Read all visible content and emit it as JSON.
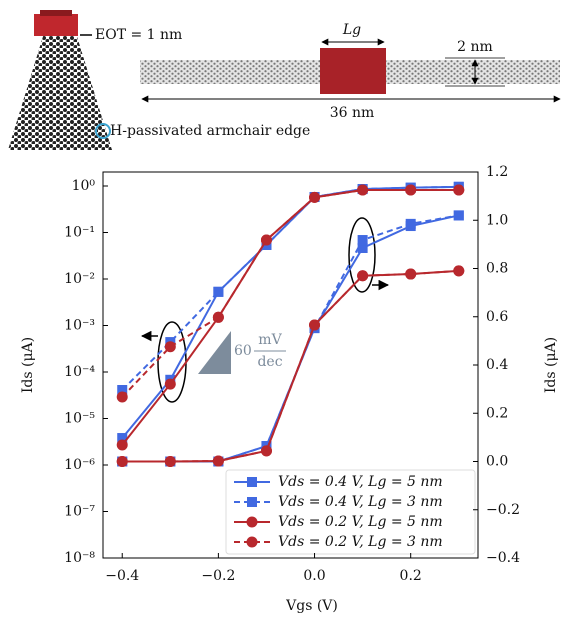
{
  "schematic": {
    "eot": "EOT = 1 nm",
    "gate_length": "Lg",
    "width": "2 nm",
    "length": "36 nm",
    "edge": "H-passivated armchair edge"
  },
  "chart_data": {
    "type": "line",
    "x_label": "Vgs (V)",
    "y_label": "Ids (μA)",
    "y2_label": "Ids (μA)",
    "x": [
      -0.4,
      -0.3,
      -0.2,
      -0.1,
      0,
      0.1,
      0.2,
      0.3
    ],
    "xlim": [
      -0.44,
      0.34
    ],
    "xticks": [
      {
        "value": -0.4,
        "label": "−0.4"
      },
      {
        "value": -0.2,
        "label": "−0.2"
      },
      {
        "value": 0,
        "label": "0.0"
      },
      0.2
    ],
    "log_y": true,
    "ylim": [
      1e-08,
      2
    ],
    "yticks": [
      {
        "value": 1e-08,
        "label": "10⁻⁸"
      },
      {
        "value": 1e-07,
        "label": "10⁻⁷"
      },
      {
        "value": 1e-06,
        "label": "10⁻⁶"
      },
      {
        "value": 1e-05,
        "label": "10⁻⁵"
      },
      {
        "value": 0.0001,
        "label": "10⁻⁴"
      },
      {
        "value": 0.001,
        "label": "10⁻³"
      },
      {
        "value": 0.01,
        "label": "10⁻²"
      },
      {
        "value": 0.1,
        "label": "10⁻¹"
      },
      {
        "value": 1,
        "label": "10⁰"
      }
    ],
    "y2lim": [
      -0.4,
      1.2
    ],
    "y2ticks": [
      {
        "value": -0.4,
        "label": "−0.4"
      },
      {
        "value": -0.2,
        "label": "−0.2"
      },
      {
        "value": 0,
        "label": "0.0"
      },
      0.2,
      0.4,
      0.6,
      0.8,
      {
        "value": 1,
        "label": "1.0"
      },
      1.2
    ],
    "legend": "lower right",
    "annotation": {
      "value": "60",
      "unit_top": "mV",
      "unit_bottom": "dec"
    },
    "series": [
      {
        "name": "Vds = 0.4 V, Lg = 5 nm",
        "color": "#4169e1",
        "dash": false,
        "marker": "square",
        "values": [
          3.8e-06,
          6.8e-05,
          0.0053,
          0.054,
          0.58,
          0.86,
          0.92,
          0.96
        ]
      },
      {
        "name": "Vds = 0.4 V, Lg = 3 nm",
        "color": "#4169e1",
        "dash": true,
        "marker": "square",
        "values": [
          4.1e-05,
          0.00044,
          0.0053,
          0.054,
          0.58,
          0.86,
          0.92,
          0.96
        ]
      },
      {
        "name": "Vds = 0.2 V, Lg = 5 nm",
        "color": "#b8282d",
        "dash": false,
        "marker": "circle",
        "values": [
          2.7e-06,
          5.5e-05,
          0.0015,
          0.069,
          0.57,
          0.82,
          0.82,
          0.82
        ]
      },
      {
        "name": "Vds = 0.2 V, Lg = 3 nm",
        "color": "#b8282d",
        "dash": true,
        "marker": "circle",
        "values": [
          2.9e-05,
          0.00035,
          0.0015,
          0.069,
          0.57,
          0.82,
          0.82,
          0.82
        ]
      },
      {
        "axis": "y2",
        "color": "#4169e1",
        "dash": false,
        "marker": "square",
        "values": [
          0.0,
          0.0,
          0.0,
          0.064,
          0.553,
          0.885,
          0.976,
          1.02
        ]
      },
      {
        "axis": "y2",
        "color": "#4169e1",
        "dash": true,
        "marker": "square",
        "values": [
          0.0,
          0.0,
          0.0,
          0.064,
          0.553,
          0.918,
          0.985,
          1.02
        ]
      },
      {
        "axis": "y2",
        "color": "#b8282d",
        "dash": false,
        "marker": "circle",
        "values": [
          0.0,
          0.0,
          0.002,
          0.044,
          0.566,
          0.77,
          0.777,
          0.79
        ]
      },
      {
        "axis": "y2",
        "color": "#b8282d",
        "dash": true,
        "marker": "circle",
        "values": [
          0.0,
          0.0,
          0.002,
          0.044,
          0.566,
          0.77,
          0.777,
          0.79
        ]
      }
    ]
  }
}
